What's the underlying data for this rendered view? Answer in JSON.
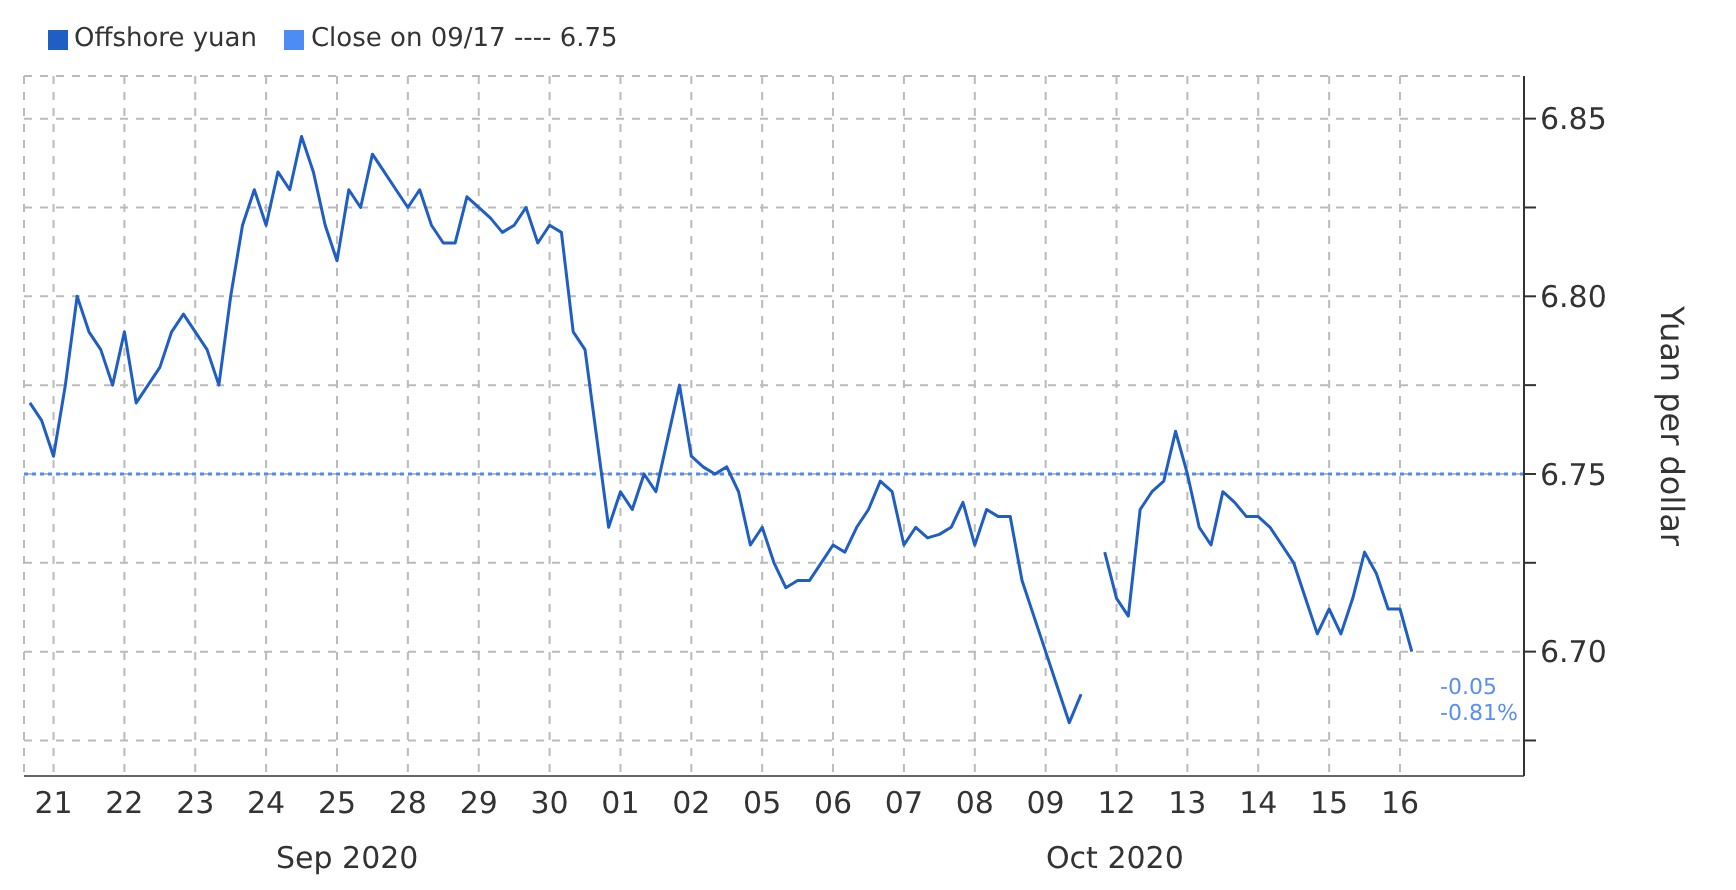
{
  "chart_data": {
    "type": "line",
    "ylabel": "Yuan per dollar",
    "legend": "top left",
    "grid": true,
    "marker": "none",
    "line_style": "solid",
    "categories": [
      null,
      null,
      "21",
      null,
      null,
      null,
      null,
      null,
      "22",
      null,
      null,
      null,
      null,
      null,
      "23",
      null,
      null,
      null,
      null,
      null,
      "24",
      null,
      null,
      null,
      null,
      null,
      "25",
      null,
      null,
      null,
      null,
      null,
      "28",
      null,
      null,
      null,
      null,
      null,
      "29",
      null,
      null,
      null,
      null,
      null,
      "30",
      null,
      null,
      null,
      null,
      null,
      "01",
      null,
      null,
      null,
      null,
      null,
      "02",
      null,
      null,
      null,
      null,
      null,
      "05",
      null,
      null,
      null,
      null,
      null,
      "06",
      null,
      null,
      null,
      null,
      null,
      "07",
      null,
      null,
      null,
      null,
      null,
      "08",
      null,
      null,
      null,
      null,
      null,
      "09",
      null,
      null,
      null,
      null,
      null,
      "12",
      null,
      null,
      null,
      null,
      null,
      "13",
      null,
      null,
      null,
      null,
      null,
      "14",
      null,
      null,
      null,
      null,
      null,
      "15",
      null,
      null,
      null,
      null,
      null,
      "16",
      null,
      null,
      null,
      null,
      null,
      null,
      null,
      null,
      null,
      null
    ],
    "series": [
      {
        "name": "Offshore yuan",
        "color": "#1f5fc4",
        "values": [
          6.77,
          6.765,
          6.755,
          6.775,
          6.8,
          6.79,
          6.785,
          6.775,
          6.79,
          6.77,
          6.775,
          6.78,
          6.79,
          6.795,
          6.79,
          6.785,
          6.775,
          6.8,
          6.82,
          6.83,
          6.82,
          6.835,
          6.83,
          6.845,
          6.835,
          6.82,
          6.81,
          6.83,
          6.825,
          6.84,
          6.835,
          6.83,
          6.825,
          6.83,
          6.82,
          6.815,
          6.815,
          6.828,
          6.825,
          6.822,
          6.818,
          6.82,
          6.825,
          6.815,
          6.82,
          6.818,
          6.79,
          6.785,
          6.76,
          6.735,
          6.745,
          6.74,
          6.75,
          6.745,
          6.76,
          6.775,
          6.755,
          6.752,
          6.75,
          6.752,
          6.745,
          6.73,
          6.735,
          6.725,
          6.718,
          6.72,
          6.72,
          6.725,
          6.73,
          6.728,
          6.735,
          6.74,
          6.748,
          6.745,
          6.73,
          6.735,
          6.732,
          6.733,
          6.735,
          6.742,
          6.73,
          6.74,
          6.738,
          6.738,
          6.72,
          6.71,
          6.7,
          6.69,
          6.68,
          6.688,
          null,
          6.728,
          6.715,
          6.71,
          6.74,
          6.745,
          6.748,
          6.762,
          6.75,
          6.735,
          6.73,
          6.745,
          6.742,
          6.738,
          6.738,
          6.735,
          6.73,
          6.725,
          6.715,
          6.705,
          6.712,
          6.705,
          6.715,
          6.728,
          6.722,
          6.712,
          6.712,
          6.7,
          null,
          null,
          null,
          null,
          null,
          null,
          null,
          null,
          null
        ]
      }
    ],
    "ylim": [
      6.665,
      6.862
    ],
    "yticks": [
      {
        "value": 6.675,
        "label": null
      },
      {
        "value": 6.7,
        "label": "6.70"
      },
      {
        "value": 6.725,
        "label": null
      },
      6.75,
      {
        "value": 6.775,
        "label": null
      },
      {
        "value": 6.8,
        "label": "6.80"
      },
      {
        "value": 6.825,
        "label": null
      },
      6.85
    ],
    "ref_lines": [
      {
        "axis": "y",
        "value": 6.75,
        "label": "Close on 09/17 ---- 6.75",
        "color": "#4d8cf5",
        "line_style": "dotted"
      }
    ],
    "annotations": [
      "-0.05",
      "-0.81%",
      "Sep 2020",
      "Oct 2020"
    ]
  }
}
